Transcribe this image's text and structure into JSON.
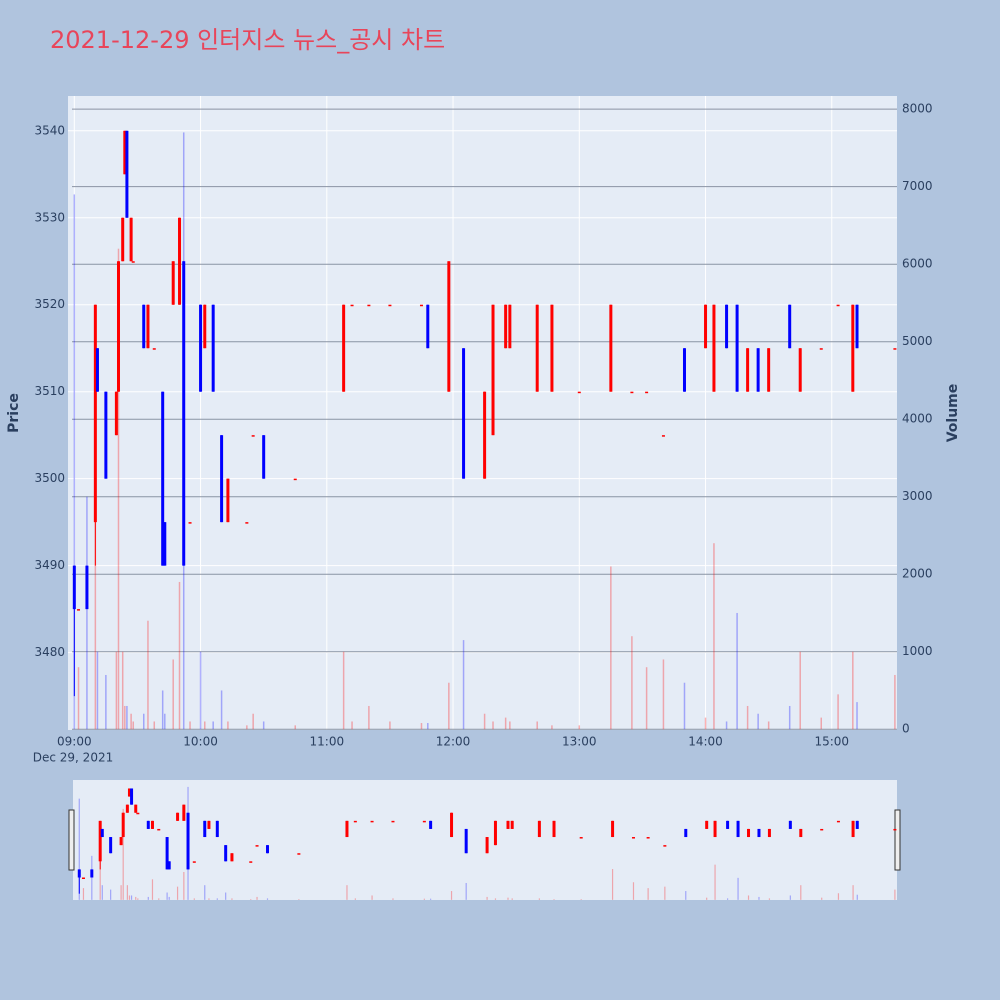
{
  "chart_data": {
    "type": "candlestick",
    "title": "2021-12-29 인터지스 뉴스_공시 차트",
    "ylabel": "Price",
    "y2label": "Volume",
    "x_date_label": "Dec 29, 2021",
    "x": [
      "09:00",
      "09:02",
      "09:06",
      "09:10",
      "09:11",
      "09:15",
      "09:20",
      "09:21",
      "09:23",
      "09:24",
      "09:25",
      "09:27",
      "09:28",
      "09:33",
      "09:35",
      "09:38",
      "09:42",
      "09:43",
      "09:47",
      "09:50",
      "09:52",
      "09:55",
      "10:00",
      "10:02",
      "10:06",
      "10:10",
      "10:13",
      "10:22",
      "10:25",
      "10:30",
      "10:45",
      "11:08",
      "11:12",
      "11:20",
      "11:30",
      "11:45",
      "11:48",
      "11:58",
      "12:05",
      "12:15",
      "12:19",
      "12:25",
      "12:27",
      "12:40",
      "12:47",
      "13:00",
      "13:15",
      "13:25",
      "13:32",
      "13:40",
      "13:50",
      "14:00",
      "14:04",
      "14:10",
      "14:15",
      "14:20",
      "14:25",
      "14:30",
      "14:40",
      "14:45",
      "14:55",
      "15:03",
      "15:10",
      "15:12",
      "15:30"
    ],
    "open": [
      3490,
      3485,
      3490,
      3495,
      3515,
      3510,
      3505,
      3510,
      3525,
      3535,
      3540,
      3525,
      3525,
      3520,
      3515,
      3515,
      3510,
      3495,
      3520,
      3520,
      3525,
      3495,
      3520,
      3515,
      3520,
      3505,
      3495,
      3495,
      3505,
      3505,
      3500,
      3510,
      3520,
      3520,
      3520,
      3520,
      3520,
      3510,
      3515,
      3500,
      3505,
      3515,
      3515,
      3510,
      3510,
      3510,
      3510,
      3510,
      3510,
      3505,
      3515,
      3515,
      3510,
      3520,
      3520,
      3510,
      3515,
      3510,
      3520,
      3510,
      3515,
      3520,
      3510,
      3520,
      3515
    ],
    "high": [
      3490,
      3485,
      3490,
      3520,
      3515,
      3510,
      3510,
      3525,
      3530,
      3540,
      3540,
      3530,
      3525,
      3520,
      3520,
      3515,
      3510,
      3495,
      3525,
      3530,
      3525,
      3495,
      3520,
      3520,
      3520,
      3505,
      3500,
      3495,
      3505,
      3505,
      3500,
      3520,
      3520,
      3520,
      3520,
      3520,
      3520,
      3525,
      3515,
      3510,
      3520,
      3520,
      3520,
      3520,
      3520,
      3510,
      3520,
      3510,
      3510,
      3505,
      3515,
      3520,
      3520,
      3520,
      3520,
      3515,
      3515,
      3515,
      3520,
      3515,
      3515,
      3520,
      3520,
      3520,
      3515
    ],
    "low": [
      3475,
      3485,
      3485,
      3490,
      3510,
      3500,
      3505,
      3510,
      3525,
      3535,
      3530,
      3525,
      3525,
      3515,
      3515,
      3515,
      3490,
      3490,
      3520,
      3520,
      3490,
      3495,
      3510,
      3515,
      3510,
      3495,
      3495,
      3495,
      3505,
      3500,
      3500,
      3510,
      3520,
      3520,
      3520,
      3520,
      3515,
      3510,
      3500,
      3500,
      3505,
      3515,
      3515,
      3510,
      3510,
      3510,
      3510,
      3510,
      3510,
      3505,
      3510,
      3515,
      3510,
      3515,
      3510,
      3510,
      3510,
      3510,
      3515,
      3510,
      3515,
      3520,
      3510,
      3515,
      3515
    ],
    "close": [
      3485,
      3485,
      3485,
      3520,
      3510,
      3500,
      3510,
      3525,
      3530,
      3540,
      3530,
      3530,
      3525,
      3515,
      3520,
      3515,
      3490,
      3490,
      3525,
      3530,
      3490,
      3495,
      3510,
      3520,
      3510,
      3495,
      3500,
      3495,
      3505,
      3500,
      3500,
      3520,
      3520,
      3520,
      3520,
      3520,
      3515,
      3525,
      3500,
      3510,
      3520,
      3520,
      3520,
      3520,
      3520,
      3510,
      3520,
      3510,
      3510,
      3505,
      3510,
      3520,
      3520,
      3515,
      3510,
      3515,
      3510,
      3515,
      3515,
      3515,
      3515,
      3520,
      3520,
      3515,
      3515
    ],
    "volume": [
      6900,
      800,
      3000,
      5300,
      1000,
      700,
      1000,
      6200,
      1000,
      300,
      300,
      200,
      100,
      200,
      1400,
      100,
      500,
      200,
      900,
      1900,
      7700,
      100,
      1000,
      100,
      100,
      500,
      100,
      50,
      200,
      100,
      50,
      1000,
      100,
      300,
      100,
      80,
      80,
      600,
      1150,
      200,
      100,
      150,
      100,
      100,
      50,
      50,
      2100,
      1200,
      800,
      900,
      600,
      150,
      2400,
      100,
      1500,
      300,
      200,
      100,
      300,
      1000,
      150,
      450,
      1000,
      350,
      700
    ],
    "increasing_color": "#ff0000",
    "decreasing_color": "#0000ff",
    "xlim": [
      "08:57",
      "15:31"
    ],
    "xticks": [
      "09:00",
      "10:00",
      "11:00",
      "12:00",
      "13:00",
      "14:00",
      "15:00"
    ],
    "ylim": [
      3471.1,
      3544
    ],
    "yticks": [
      3480,
      3490,
      3500,
      3510,
      3520,
      3530,
      3540
    ],
    "y2lim": [
      -10,
      8170
    ],
    "y2ticks": [
      0,
      1000,
      2000,
      3000,
      4000,
      5000,
      6000,
      7000,
      8000
    ]
  }
}
